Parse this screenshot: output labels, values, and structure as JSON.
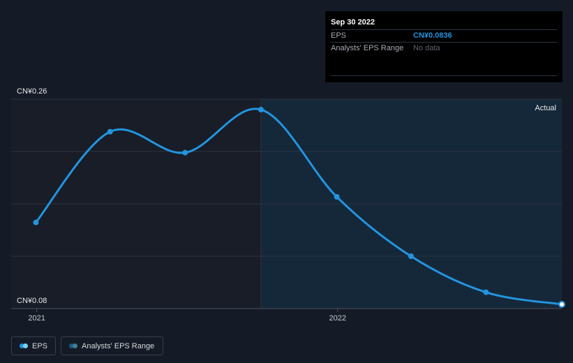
{
  "chart_data": {
    "type": "line",
    "x": [
      "2020-12-31",
      "2021-03-31",
      "2021-06-30",
      "2021-09-30",
      "2021-12-31",
      "2022-03-31",
      "2022-06-30",
      "2022-09-30"
    ],
    "series": [
      {
        "name": "EPS",
        "values": [
          0.154,
          0.232,
          0.214,
          0.251,
          0.176,
          0.125,
          0.094,
          0.0836
        ]
      }
    ],
    "y_axis_labels": [
      "CN¥0.26",
      "CN¥0.08"
    ],
    "ylim": [
      0.08,
      0.26
    ],
    "x_ticks": [
      {
        "date": "2021-01-01",
        "label": "2021"
      },
      {
        "date": "2022-01-01",
        "label": "2022"
      }
    ],
    "actual_from": "2021-09-30",
    "actual_label": "Actual",
    "grid": true,
    "colors": {
      "line": "#2394df",
      "shade": "#15283a",
      "background": "#151b26",
      "past": "#181d27"
    }
  },
  "tooltip": {
    "date": "Sep 30 2022",
    "rows": [
      {
        "label": "EPS",
        "value": "CN¥0.0836"
      },
      {
        "label": "Analysts' EPS Range",
        "value": "No data"
      }
    ]
  },
  "legend": {
    "items": [
      {
        "label": "EPS",
        "colors": [
          "#2394df",
          "#7cd3f5"
        ]
      },
      {
        "label": "Analysts' EPS Range",
        "colors": [
          "#1c5a80",
          "#3f7f96"
        ]
      }
    ]
  }
}
